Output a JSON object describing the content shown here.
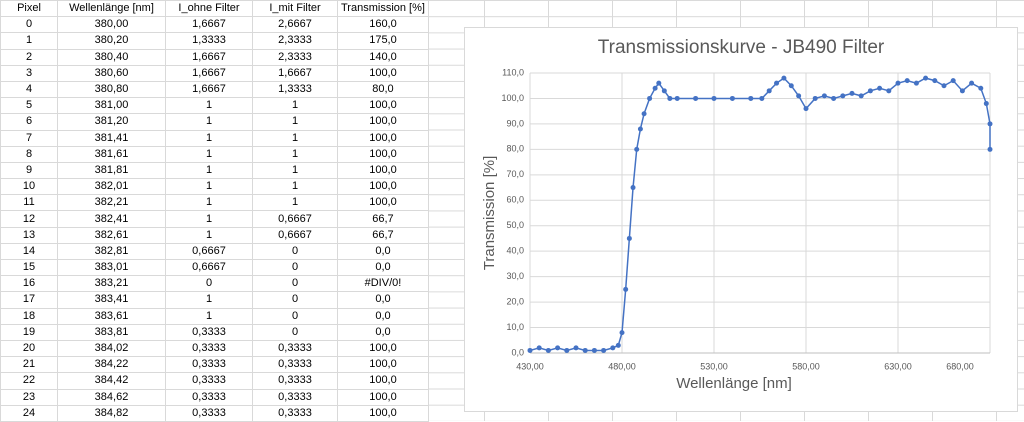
{
  "table": {
    "header": [
      "Pixel",
      "Wellenlänge [nm]",
      "I_ohne Filter",
      "I_mit Filter",
      "Transmission [%]"
    ],
    "rows": [
      [
        "0",
        "380,00",
        "1,6667",
        "2,6667",
        "160,0"
      ],
      [
        "1",
        "380,20",
        "1,3333",
        "2,3333",
        "175,0"
      ],
      [
        "2",
        "380,40",
        "1,6667",
        "2,3333",
        "140,0"
      ],
      [
        "3",
        "380,60",
        "1,6667",
        "1,6667",
        "100,0"
      ],
      [
        "4",
        "380,80",
        "1,6667",
        "1,3333",
        "80,0"
      ],
      [
        "5",
        "381,00",
        "1",
        "1",
        "100,0"
      ],
      [
        "6",
        "381,20",
        "1",
        "1",
        "100,0"
      ],
      [
        "7",
        "381,41",
        "1",
        "1",
        "100,0"
      ],
      [
        "8",
        "381,61",
        "1",
        "1",
        "100,0"
      ],
      [
        "9",
        "381,81",
        "1",
        "1",
        "100,0"
      ],
      [
        "10",
        "382,01",
        "1",
        "1",
        "100,0"
      ],
      [
        "11",
        "382,21",
        "1",
        "1",
        "100,0"
      ],
      [
        "12",
        "382,41",
        "1",
        "0,6667",
        "66,7"
      ],
      [
        "13",
        "382,61",
        "1",
        "0,6667",
        "66,7"
      ],
      [
        "14",
        "382,81",
        "0,6667",
        "0",
        "0,0"
      ],
      [
        "15",
        "383,01",
        "0,6667",
        "0",
        "0,0"
      ],
      [
        "16",
        "383,21",
        "0",
        "0",
        "#DIV/0!"
      ],
      [
        "17",
        "383,41",
        "1",
        "0",
        "0,0"
      ],
      [
        "18",
        "383,61",
        "1",
        "0",
        "0,0"
      ],
      [
        "19",
        "383,81",
        "0,3333",
        "0",
        "0,0"
      ],
      [
        "20",
        "384,02",
        "0,3333",
        "0,3333",
        "100,0"
      ],
      [
        "21",
        "384,22",
        "0,3333",
        "0,3333",
        "100,0"
      ],
      [
        "22",
        "384,42",
        "0,3333",
        "0,3333",
        "100,0"
      ],
      [
        "23",
        "384,62",
        "0,3333",
        "0,3333",
        "100,0"
      ],
      [
        "24",
        "384,82",
        "0,3333",
        "0,3333",
        "100,0"
      ]
    ]
  },
  "chart_data": {
    "type": "scatter",
    "title": "Transmissionskurve - JB490 Filter",
    "x_label": "Wellenlänge [nm]",
    "y_label": "Transmission [%]",
    "color": "#4472c4",
    "x": [
      430,
      435,
      440,
      445,
      450,
      455,
      460,
      465,
      470,
      475,
      478,
      480,
      482,
      484,
      486,
      488,
      490,
      492,
      495,
      498,
      500,
      503,
      506,
      510,
      520,
      530,
      540,
      550,
      556,
      560,
      564,
      568,
      572,
      576,
      580,
      585,
      590,
      595,
      600,
      605,
      610,
      615,
      620,
      625,
      630,
      635,
      640,
      645,
      650,
      655,
      660,
      665,
      670,
      675,
      678,
      680,
      680
    ],
    "values": [
      1,
      2,
      1,
      2,
      1,
      2,
      1,
      1,
      1,
      2,
      3,
      8,
      25,
      45,
      65,
      80,
      88,
      94,
      100,
      104,
      106,
      103,
      100,
      100,
      100,
      100,
      100,
      100,
      100,
      103,
      106,
      108,
      105,
      101,
      96,
      100,
      101,
      100,
      101,
      102,
      101,
      103,
      104,
      103,
      106,
      107,
      106,
      108,
      107,
      105,
      107,
      103,
      106,
      104,
      98,
      90,
      80
    ],
    "xlim": [
      430,
      680
    ],
    "xticks": [
      {
        "value": 430,
        "label": "430,00"
      },
      {
        "value": 480,
        "label": "480,00"
      },
      {
        "value": 530,
        "label": "530,00"
      },
      {
        "value": 580,
        "label": "580,00"
      },
      {
        "value": 630,
        "label": "630,00"
      },
      {
        "value": 680,
        "label": "680,00"
      }
    ],
    "ylim": [
      0,
      110
    ],
    "yticks": [
      {
        "value": 0,
        "label": "0,0"
      },
      {
        "value": 10,
        "label": "10,0"
      },
      {
        "value": 20,
        "label": "20,0"
      },
      {
        "value": 30,
        "label": "30,0"
      },
      {
        "value": 40,
        "label": "40,0"
      },
      {
        "value": 50,
        "label": "50,0"
      },
      {
        "value": 60,
        "label": "60,0"
      },
      {
        "value": 70,
        "label": "70,0"
      },
      {
        "value": 80,
        "label": "80,0"
      },
      {
        "value": 90,
        "label": "90,0"
      },
      {
        "value": 100,
        "label": "100,0"
      },
      {
        "value": 110,
        "label": "110,0"
      }
    ],
    "grid": true
  }
}
